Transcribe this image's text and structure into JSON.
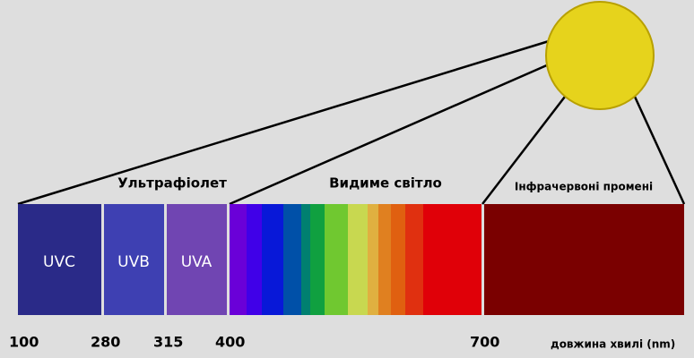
{
  "header": {
    "ultraviolet": "Ультрафіолет",
    "visible": "Видиме світло",
    "infrared": "Інфрачервоні промені"
  },
  "bands": [
    "UVC",
    "UVB",
    "UVA"
  ],
  "scale": {
    "ticks": [
      "100",
      "280",
      "315",
      "400",
      "700"
    ],
    "unit": "довжина хвилі (nm)"
  }
}
